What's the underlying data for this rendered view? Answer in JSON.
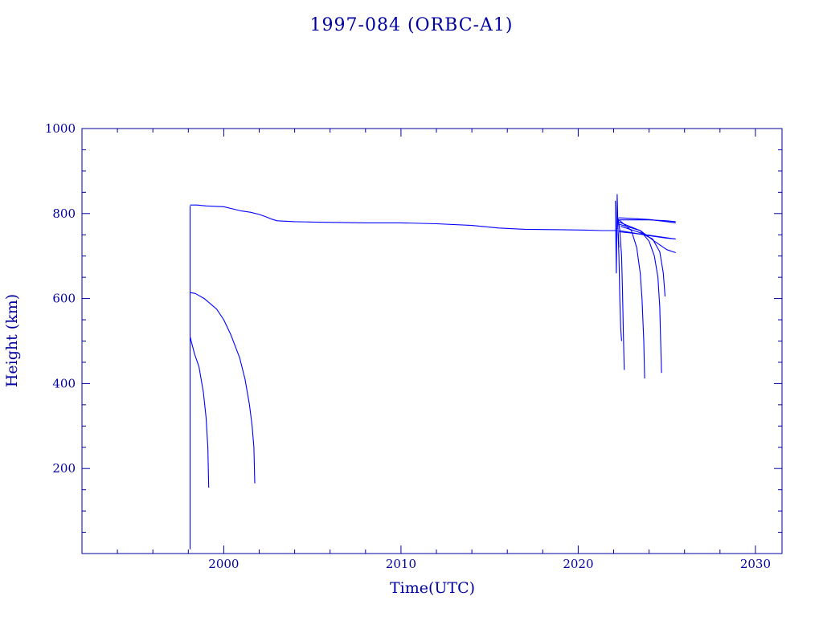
{
  "chart_data": {
    "type": "line",
    "title": "1997-084 (ORBC-A1)",
    "xlabel": "Time(UTC)",
    "ylabel": "Height (km)",
    "xlim": [
      1992,
      2031.5
    ],
    "ylim": [
      0,
      1000
    ],
    "xticks": [
      2000,
      2010,
      2020,
      2030
    ],
    "yticks": [
      200,
      400,
      600,
      800,
      1000
    ],
    "color": "#0000ff",
    "axis_color": "#0000a0",
    "grid": false,
    "series": [
      {
        "x": [
          1998.1,
          1998.1
        ],
        "y": [
          10,
          818
        ]
      },
      {
        "x": [
          1998.1,
          1998.5,
          1999.0,
          2000.0,
          2000.6,
          2001.0,
          2001.5,
          2002.0,
          2002.4,
          2002.7,
          2003.0,
          2004.0,
          2005.0,
          2008.0,
          2010.0,
          2012.0,
          2014.0,
          2015.5,
          2017.0,
          2019.0,
          2020.5,
          2021.3,
          2021.8,
          2022.2
        ],
        "y": [
          820,
          820,
          818,
          816,
          810,
          806,
          803,
          798,
          792,
          787,
          783,
          781,
          780,
          778,
          778,
          776,
          772,
          766,
          763,
          762,
          761,
          760,
          760,
          760
        ]
      },
      {
        "x": [
          1998.1,
          1998.4,
          1998.9,
          1999.6,
          2000.0,
          2000.4,
          2000.9,
          2001.2,
          2001.45,
          2001.6,
          2001.7,
          2001.75
        ],
        "y": [
          614,
          612,
          600,
          575,
          550,
          515,
          460,
          410,
          350,
          300,
          250,
          165
        ]
      },
      {
        "x": [
          1998.1,
          1998.35,
          1998.6,
          1998.85,
          1999.0,
          1999.1,
          1999.15
        ],
        "y": [
          510,
          470,
          440,
          380,
          320,
          250,
          155
        ]
      },
      {
        "x": [
          2022.1,
          2022.15,
          2022.2,
          2022.25,
          2022.3
        ],
        "y": [
          830,
          660,
          845,
          760,
          720
        ]
      },
      {
        "x": [
          2022.2,
          2022.25,
          2022.3,
          2022.35,
          2022.4,
          2022.45
        ],
        "y": [
          815,
          760,
          700,
          600,
          530,
          500
        ]
      },
      {
        "x": [
          2022.25,
          2022.35,
          2022.45,
          2022.5,
          2022.55,
          2022.6
        ],
        "y": [
          790,
          760,
          700,
          620,
          520,
          432
        ]
      },
      {
        "x": [
          2022.3,
          2023.0,
          2023.3,
          2023.5,
          2023.6,
          2023.7,
          2023.75
        ],
        "y": [
          785,
          760,
          720,
          660,
          600,
          500,
          412
        ]
      },
      {
        "x": [
          2022.3,
          2023.5,
          2024.0,
          2024.3,
          2024.5,
          2024.6,
          2024.65,
          2024.7
        ],
        "y": [
          775,
          760,
          735,
          700,
          650,
          580,
          500,
          425
        ]
      },
      {
        "x": [
          2022.4,
          2023.5,
          2024.2,
          2024.6,
          2024.8,
          2024.9
        ],
        "y": [
          770,
          755,
          740,
          710,
          660,
          605
        ]
      },
      {
        "x": [
          2022.3,
          2023.5,
          2024.3,
          2025.0,
          2025.5
        ],
        "y": [
          780,
          760,
          735,
          715,
          708
        ]
      },
      {
        "x": [
          2022.3,
          2023.0,
          2024.0,
          2025.0,
          2025.5
        ],
        "y": [
          760,
          755,
          748,
          742,
          740
        ]
      },
      {
        "x": [
          2022.3,
          2023.5,
          2024.5,
          2025.5
        ],
        "y": [
          757,
          752,
          746,
          740
        ]
      },
      {
        "x": [
          2022.3,
          2024.0,
          2025.0,
          2025.5
        ],
        "y": [
          785,
          785,
          783,
          781
        ]
      },
      {
        "x": [
          2022.3,
          2024.0,
          2025.0,
          2025.5
        ],
        "y": [
          790,
          786,
          781,
          778
        ]
      }
    ]
  }
}
